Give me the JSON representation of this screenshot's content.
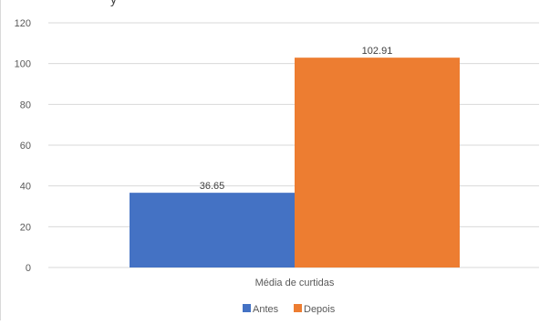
{
  "chart_data": {
    "type": "bar",
    "title": "",
    "xlabel": "",
    "ylabel": "",
    "categories": [
      "Média de curtidas"
    ],
    "series": [
      {
        "name": "Antes",
        "values": [
          36.65
        ],
        "color": "#4472C4"
      },
      {
        "name": "Depois",
        "values": [
          102.91
        ],
        "color": "#ED7D31"
      }
    ],
    "ylim": [
      0,
      120
    ],
    "yticks": [
      "0",
      "20",
      "40",
      "60",
      "80",
      "100",
      "120"
    ],
    "data_labels": [
      "36.65",
      "102.91"
    ],
    "grid": true,
    "legend_position": "bottom"
  },
  "colors": {
    "gridline": "#d9d9d9",
    "axis_text": "#595959",
    "label_text": "#404040"
  }
}
